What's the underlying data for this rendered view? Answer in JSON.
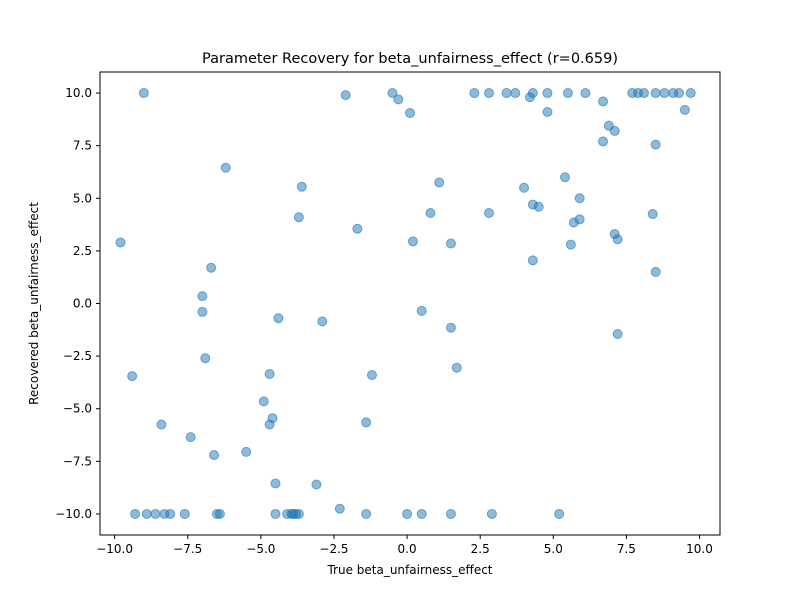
{
  "chart_data": {
    "type": "scatter",
    "title": "Parameter Recovery for beta_unfairness_effect (r=0.659)",
    "xlabel": "True beta_unfairness_effect",
    "ylabel": "Recovered beta_unfairness_effect",
    "xlim": [
      -10.5,
      10.7
    ],
    "ylim": [
      -11.0,
      11.0
    ],
    "xticks": [
      -10.0,
      -7.5,
      -5.0,
      -2.5,
      0.0,
      2.5,
      5.0,
      7.5,
      10.0
    ],
    "xtick_labels": [
      "−10.0",
      "−7.5",
      "−5.0",
      "−2.5",
      "0.0",
      "2.5",
      "5.0",
      "7.5",
      "10.0"
    ],
    "yticks": [
      -10.0,
      -7.5,
      -5.0,
      -2.5,
      0.0,
      2.5,
      5.0,
      7.5,
      10.0
    ],
    "ytick_labels": [
      "−10.0",
      "−7.5",
      "−5.0",
      "−2.5",
      "0.0",
      "2.5",
      "5.0",
      "7.5",
      "10.0"
    ],
    "grid": false,
    "marker_color": "#1f77b4",
    "points": [
      [
        -9.0,
        10.0
      ],
      [
        -2.1,
        9.9
      ],
      [
        -0.5,
        10.0
      ],
      [
        -0.3,
        9.7
      ],
      [
        0.1,
        9.05
      ],
      [
        2.3,
        10.0
      ],
      [
        2.8,
        10.0
      ],
      [
        3.4,
        10.0
      ],
      [
        3.7,
        10.0
      ],
      [
        4.2,
        9.8
      ],
      [
        4.3,
        10.0
      ],
      [
        4.8,
        10.0
      ],
      [
        4.8,
        9.1
      ],
      [
        5.5,
        10.0
      ],
      [
        6.1,
        10.0
      ],
      [
        6.7,
        9.6
      ],
      [
        7.7,
        10.0
      ],
      [
        7.9,
        10.0
      ],
      [
        8.1,
        10.0
      ],
      [
        8.5,
        10.0
      ],
      [
        8.8,
        10.0
      ],
      [
        9.1,
        10.0
      ],
      [
        9.3,
        10.0
      ],
      [
        9.7,
        10.0
      ],
      [
        9.5,
        9.2
      ],
      [
        6.9,
        8.45
      ],
      [
        7.1,
        8.2
      ],
      [
        6.7,
        7.7
      ],
      [
        8.5,
        7.55
      ],
      [
        -6.2,
        6.45
      ],
      [
        -3.6,
        5.55
      ],
      [
        1.1,
        5.75
      ],
      [
        4.0,
        5.5
      ],
      [
        5.4,
        6.0
      ],
      [
        5.9,
        5.0
      ],
      [
        4.3,
        4.7
      ],
      [
        4.5,
        4.6
      ],
      [
        -3.7,
        4.1
      ],
      [
        0.8,
        4.3
      ],
      [
        2.8,
        4.3
      ],
      [
        5.7,
        3.85
      ],
      [
        5.9,
        4.0
      ],
      [
        8.4,
        4.25
      ],
      [
        -1.7,
        3.55
      ],
      [
        7.1,
        3.3
      ],
      [
        7.2,
        3.05
      ],
      [
        -9.8,
        2.9
      ],
      [
        0.2,
        2.95
      ],
      [
        1.5,
        2.85
      ],
      [
        5.6,
        2.8
      ],
      [
        4.3,
        2.05
      ],
      [
        -6.7,
        1.7
      ],
      [
        8.5,
        1.5
      ],
      [
        -7.0,
        0.35
      ],
      [
        -7.0,
        -0.4
      ],
      [
        0.5,
        -0.35
      ],
      [
        -4.4,
        -0.7
      ],
      [
        -2.9,
        -0.85
      ],
      [
        1.5,
        -1.15
      ],
      [
        7.2,
        -1.45
      ],
      [
        -6.9,
        -2.6
      ],
      [
        1.7,
        -3.05
      ],
      [
        -9.4,
        -3.45
      ],
      [
        -4.7,
        -3.35
      ],
      [
        -1.2,
        -3.4
      ],
      [
        -4.9,
        -4.65
      ],
      [
        -4.6,
        -5.45
      ],
      [
        -4.7,
        -5.75
      ],
      [
        -8.4,
        -5.75
      ],
      [
        -1.4,
        -5.65
      ],
      [
        -7.4,
        -6.35
      ],
      [
        -5.5,
        -7.05
      ],
      [
        -6.6,
        -7.2
      ],
      [
        -4.5,
        -8.55
      ],
      [
        -3.1,
        -8.6
      ],
      [
        -2.3,
        -9.75
      ],
      [
        -9.3,
        -10.0
      ],
      [
        -8.9,
        -10.0
      ],
      [
        -8.6,
        -10.0
      ],
      [
        -8.3,
        -10.0
      ],
      [
        -8.1,
        -10.0
      ],
      [
        -7.6,
        -10.0
      ],
      [
        -6.5,
        -10.0
      ],
      [
        -6.4,
        -10.0
      ],
      [
        -4.5,
        -10.0
      ],
      [
        -4.1,
        -10.0
      ],
      [
        -3.9,
        -10.0
      ],
      [
        -3.8,
        -10.0
      ],
      [
        -3.7,
        -10.0
      ],
      [
        -3.95,
        -10.0
      ],
      [
        -1.4,
        -10.0
      ],
      [
        0.0,
        -10.0
      ],
      [
        0.5,
        -10.0
      ],
      [
        1.5,
        -10.0
      ],
      [
        2.9,
        -10.0
      ],
      [
        5.2,
        -10.0
      ]
    ]
  }
}
